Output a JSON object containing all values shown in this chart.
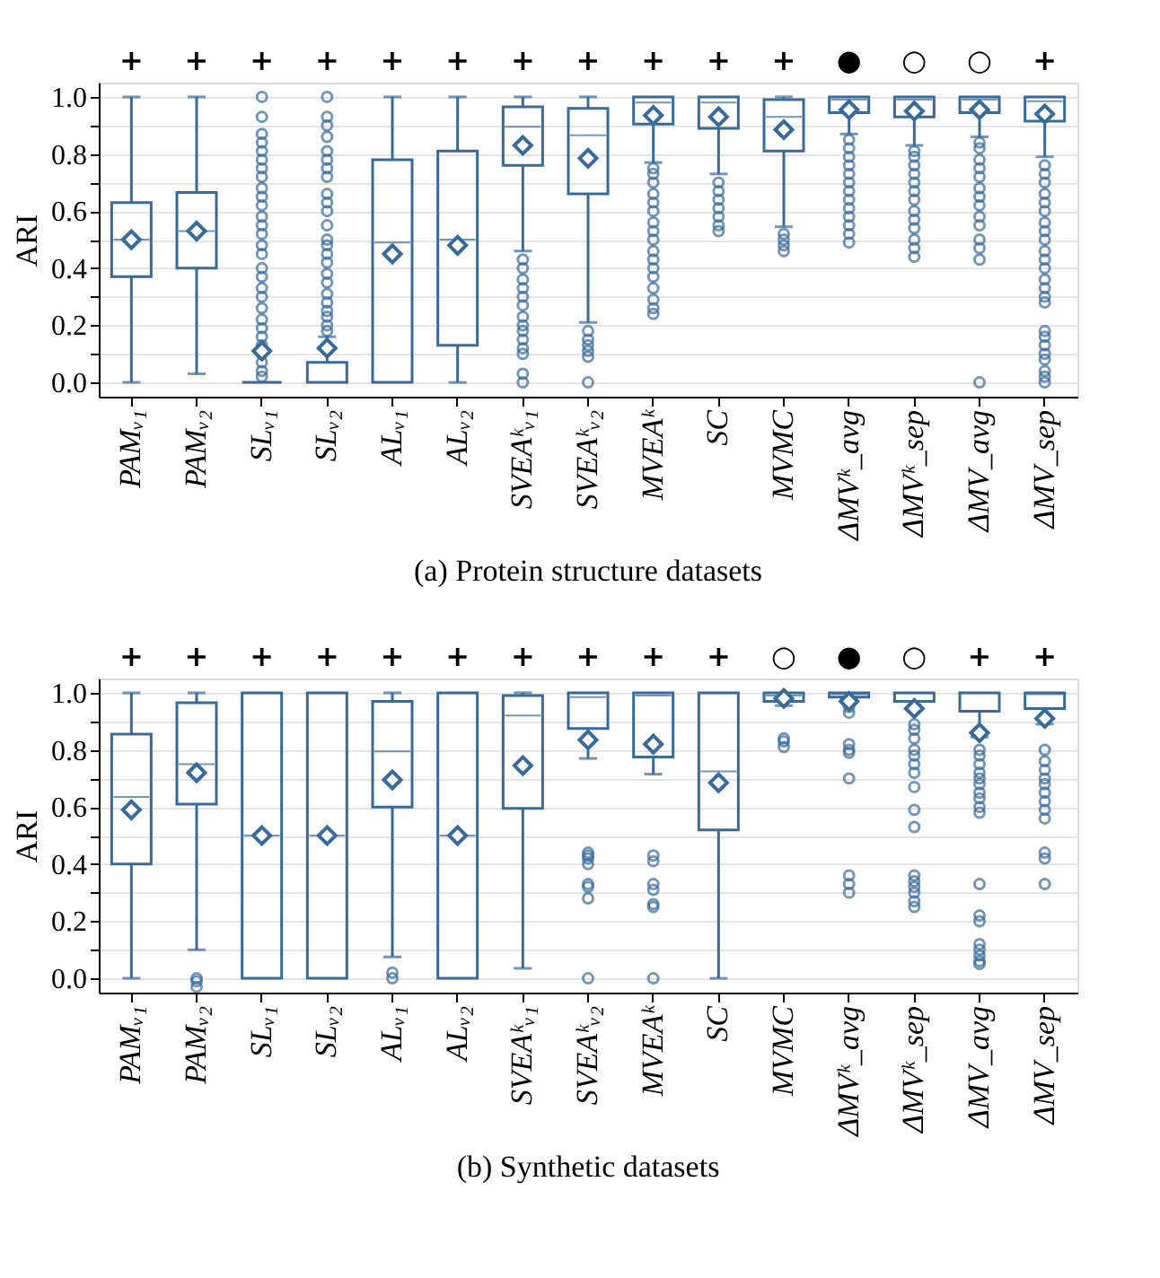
{
  "chart_data": [
    {
      "type": "box",
      "title": "(a) Protein structure datasets",
      "ylabel": "ARI",
      "color": "#3b6a97",
      "marker": "diamond",
      "grid": "y",
      "categories": [
        "PAMᵥ₁",
        "PAMᵥ₂",
        "SLᵥ₁",
        "SLᵥ₂",
        "ALᵥ₁",
        "ALᵥ₂",
        "SVEAᵏᵥ₁",
        "SVEAᵏᵥ₂",
        "MVEAᵏ",
        "SC",
        "MVMC",
        "ΔMVᵏ_avg",
        "ΔMVᵏ_sep",
        "ΔMV_avg",
        "ΔMV_sep"
      ],
      "ylim": [
        -0.05,
        1.05
      ],
      "yticks": [
        {
          "value": 0,
          "label": "0.0"
        },
        {
          "value": 0.1,
          "label": null
        },
        {
          "value": 0.2,
          "label": "0.2"
        },
        {
          "value": 0.3,
          "label": null
        },
        {
          "value": 0.4,
          "label": "0.4"
        },
        {
          "value": 0.5,
          "label": null
        },
        {
          "value": 0.6,
          "label": "0.6"
        },
        {
          "value": 0.7,
          "label": null
        },
        {
          "value": 0.8,
          "label": "0.8"
        },
        {
          "value": 0.9,
          "label": null
        },
        {
          "value": 1,
          "label": "1.0"
        }
      ],
      "boxes": [
        {
          "low": 0,
          "q1": 0.37,
          "median": 0.5,
          "q3": 0.63,
          "high": 1.0,
          "mean": 0.5
        },
        {
          "low": 0.03,
          "q1": 0.4,
          "median": 0.53,
          "q3": 0.665,
          "high": 1.0,
          "mean": 0.53
        },
        {
          "low": 0,
          "q1": 0,
          "median": 0,
          "q3": 0,
          "high": 0,
          "mean": 0.11,
          "outliers": [
            0.02,
            0.04,
            0.07,
            0.1,
            0.13,
            0.16,
            0.19,
            0.22,
            0.26,
            0.3,
            0.33,
            0.37,
            0.4,
            0.45,
            0.48,
            0.52,
            0.55,
            0.58,
            0.62,
            0.65,
            0.68,
            0.72,
            0.75,
            0.78,
            0.81,
            0.84,
            0.87,
            0.93,
            1.0
          ]
        },
        {
          "low": 0,
          "q1": 0,
          "median": 0,
          "q3": 0.07,
          "high": 0.16,
          "mean": 0.12,
          "outliers": [
            0.18,
            0.2,
            0.23,
            0.25,
            0.28,
            0.31,
            0.35,
            0.38,
            0.42,
            0.45,
            0.48,
            0.5,
            0.55,
            0.6,
            0.63,
            0.66,
            0.72,
            0.75,
            0.78,
            0.81,
            0.86,
            0.9,
            0.93,
            1.0
          ]
        },
        {
          "low": 0,
          "q1": 0,
          "median": 0.49,
          "q3": 0.78,
          "high": 1.0,
          "mean": 0.45
        },
        {
          "low": 0,
          "q1": 0.13,
          "median": 0.5,
          "q3": 0.81,
          "high": 1.0,
          "mean": 0.48
        },
        {
          "low": 0.46,
          "q1": 0.76,
          "median": 0.895,
          "q3": 0.965,
          "high": 1.0,
          "mean": 0.83,
          "outliers": [
            0,
            0.03,
            0.1,
            0.12,
            0.15,
            0.18,
            0.2,
            0.23,
            0.27,
            0.3,
            0.33,
            0.36,
            0.4,
            0.43
          ]
        },
        {
          "low": 0.21,
          "q1": 0.66,
          "median": 0.865,
          "q3": 0.96,
          "high": 1.0,
          "mean": 0.785,
          "outliers": [
            0,
            0.09,
            0.11,
            0.13,
            0.15,
            0.18
          ]
        },
        {
          "low": 0.77,
          "q1": 0.905,
          "median": 0.98,
          "q3": 1.0,
          "high": 1.0,
          "mean": 0.935,
          "outliers": [
            0.24,
            0.26,
            0.29,
            0.33,
            0.37,
            0.4,
            0.43,
            0.46,
            0.5,
            0.53,
            0.56,
            0.6,
            0.63,
            0.66,
            0.7,
            0.73,
            0.75
          ]
        },
        {
          "low": 0.73,
          "q1": 0.89,
          "median": 0.98,
          "q3": 1.0,
          "high": 1.0,
          "mean": 0.93,
          "outliers": [
            0.53,
            0.55,
            0.58,
            0.61,
            0.64,
            0.67,
            0.7
          ]
        },
        {
          "low": 0.545,
          "q1": 0.81,
          "median": 0.93,
          "q3": 0.99,
          "high": 1.0,
          "mean": 0.885,
          "outliers": [
            0.46,
            0.48,
            0.5,
            0.52
          ]
        },
        {
          "low": 0.87,
          "q1": 0.945,
          "median": 0.99,
          "q3": 1.0,
          "high": 1.0,
          "mean": 0.955,
          "outliers": [
            0.49,
            0.52,
            0.55,
            0.58,
            0.61,
            0.64,
            0.67,
            0.7,
            0.73,
            0.76,
            0.79,
            0.82,
            0.85
          ]
        },
        {
          "low": 0.83,
          "q1": 0.93,
          "median": 0.99,
          "q3": 1.0,
          "high": 1.0,
          "mean": 0.95,
          "outliers": [
            0.44,
            0.47,
            0.5,
            0.54,
            0.57,
            0.6,
            0.64,
            0.67,
            0.7,
            0.73,
            0.76,
            0.79,
            0.81
          ]
        },
        {
          "low": 0.86,
          "q1": 0.945,
          "median": 0.99,
          "q3": 1.0,
          "high": 1.0,
          "mean": 0.955,
          "outliers": [
            0,
            0.43,
            0.47,
            0.5,
            0.55,
            0.58,
            0.62,
            0.65,
            0.68,
            0.72,
            0.75,
            0.78,
            0.82,
            0.84
          ]
        },
        {
          "low": 0.79,
          "q1": 0.915,
          "median": 0.985,
          "q3": 1.0,
          "high": 1.0,
          "mean": 0.94,
          "outliers": [
            0,
            0.02,
            0.04,
            0.08,
            0.1,
            0.13,
            0.16,
            0.18,
            0.28,
            0.3,
            0.33,
            0.36,
            0.4,
            0.43,
            0.46,
            0.5,
            0.53,
            0.56,
            0.6,
            0.63,
            0.66,
            0.7,
            0.73,
            0.76
          ]
        }
      ],
      "annotations": [
        "+",
        "+",
        "+",
        "+",
        "+",
        "+",
        "+",
        "+",
        "+",
        "+",
        "+",
        "●",
        "○",
        "○",
        "+"
      ]
    },
    {
      "type": "box",
      "title": "(b) Synthetic datasets",
      "ylabel": "ARI",
      "color": "#3b6a97",
      "marker": "diamond",
      "grid": "y",
      "categories": [
        "PAMᵥ₁",
        "PAMᵥ₂",
        "SLᵥ₁",
        "SLᵥ₂",
        "ALᵥ₁",
        "ALᵥ₂",
        "SVEAᵏᵥ₁",
        "SVEAᵏᵥ₂",
        "MVEAᵏ",
        "SC",
        "MVMC",
        "ΔMVᵏ_avg",
        "ΔMVᵏ_sep",
        "ΔMV_avg",
        "ΔMV_sep"
      ],
      "ylim": [
        -0.05,
        1.05
      ],
      "yticks": [
        {
          "value": 0,
          "label": "0.0"
        },
        {
          "value": 0.1,
          "label": null
        },
        {
          "value": 0.2,
          "label": "0.2"
        },
        {
          "value": 0.3,
          "label": null
        },
        {
          "value": 0.4,
          "label": "0.4"
        },
        {
          "value": 0.5,
          "label": null
        },
        {
          "value": 0.6,
          "label": "0.6"
        },
        {
          "value": 0.7,
          "label": null
        },
        {
          "value": 0.8,
          "label": "0.8"
        },
        {
          "value": 0.9,
          "label": null
        },
        {
          "value": 1,
          "label": "1.0"
        }
      ],
      "boxes": [
        {
          "low": 0,
          "q1": 0.4,
          "median": 0.635,
          "q3": 0.855,
          "high": 1.0,
          "mean": 0.59
        },
        {
          "low": 0.1,
          "q1": 0.61,
          "median": 0.75,
          "q3": 0.965,
          "high": 1.0,
          "mean": 0.72,
          "outliers": [
            -0.03,
            -0.01,
            0.0
          ]
        },
        {
          "low": 0,
          "q1": 0,
          "median": 0.5,
          "q3": 1.0,
          "high": 1.0,
          "mean": 0.5
        },
        {
          "low": 0,
          "q1": 0,
          "median": 0.5,
          "q3": 1.0,
          "high": 1.0,
          "mean": 0.5
        },
        {
          "low": 0.075,
          "q1": 0.6,
          "median": 0.795,
          "q3": 0.97,
          "high": 1.0,
          "mean": 0.695,
          "outliers": [
            0,
            0.02
          ]
        },
        {
          "low": 0,
          "q1": 0,
          "median": 0.5,
          "q3": 1.0,
          "high": 1.0,
          "mean": 0.5
        },
        {
          "low": 0.035,
          "q1": 0.595,
          "median": 0.92,
          "q3": 0.99,
          "high": 1.0,
          "mean": 0.745
        },
        {
          "low": 0.77,
          "q1": 0.875,
          "median": 0.985,
          "q3": 1.0,
          "high": 1.0,
          "mean": 0.835,
          "outliers": [
            0,
            0.28,
            0.32,
            0.33,
            0.4,
            0.42,
            0.43,
            0.44
          ]
        },
        {
          "low": 0.715,
          "q1": 0.775,
          "median": 0.99,
          "q3": 1.0,
          "high": 1.0,
          "mean": 0.82,
          "outliers": [
            0,
            0.25,
            0.26,
            0.31,
            0.33,
            0.41,
            0.43
          ]
        },
        {
          "low": 0,
          "q1": 0.52,
          "median": 0.725,
          "q3": 1.0,
          "high": 1.0,
          "mean": 0.685
        },
        {
          "low": 0.955,
          "q1": 0.97,
          "median": 0.99,
          "q3": 1.0,
          "high": 1.0,
          "mean": 0.98,
          "outliers": [
            0.81,
            0.83,
            0.84
          ]
        },
        {
          "low": 0.98,
          "q1": 0.985,
          "median": 0.995,
          "q3": 1.0,
          "high": 1.0,
          "mean": 0.97,
          "outliers": [
            0.3,
            0.33,
            0.36,
            0.7,
            0.79,
            0.8,
            0.82,
            0.93,
            0.95
          ]
        },
        {
          "low": 0.94,
          "q1": 0.97,
          "median": 1.0,
          "q3": 1.0,
          "high": 1.0,
          "mean": 0.945,
          "outliers": [
            0.25,
            0.27,
            0.3,
            0.32,
            0.34,
            0.36,
            0.53,
            0.59,
            0.67,
            0.72,
            0.75,
            0.78,
            0.8,
            0.84,
            0.87,
            0.89
          ]
        },
        {
          "low": 0.845,
          "q1": 0.935,
          "median": 1.0,
          "q3": 1.0,
          "high": 1.0,
          "mean": 0.86,
          "outliers": [
            0.05,
            0.06,
            0.08,
            0.1,
            0.12,
            0.2,
            0.22,
            0.33,
            0.58,
            0.6,
            0.63,
            0.65,
            0.68,
            0.7,
            0.72,
            0.75,
            0.78,
            0.8
          ]
        },
        {
          "low": 0.89,
          "q1": 0.945,
          "median": 0.995,
          "q3": 1.0,
          "high": 1.0,
          "mean": 0.91,
          "outliers": [
            0.33,
            0.42,
            0.44,
            0.56,
            0.59,
            0.62,
            0.65,
            0.68,
            0.7,
            0.73,
            0.76,
            0.8
          ]
        }
      ],
      "annotations": [
        "+",
        "+",
        "+",
        "+",
        "+",
        "+",
        "+",
        "+",
        "+",
        "+",
        "○",
        "●",
        "○",
        "+",
        "+"
      ]
    }
  ]
}
